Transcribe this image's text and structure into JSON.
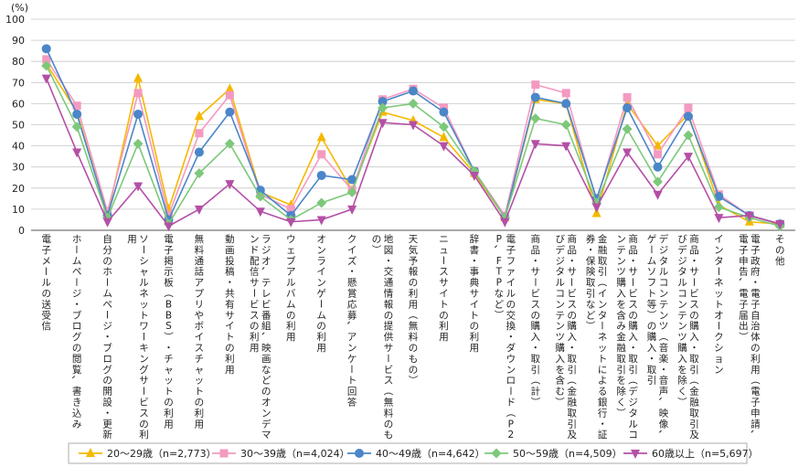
{
  "chart_data": {
    "type": "line",
    "unit_label": "(%)",
    "ylim": [
      0,
      100
    ],
    "yticks": [
      0,
      10,
      20,
      30,
      40,
      50,
      60,
      70,
      80,
      90,
      100
    ],
    "grid": true,
    "legend_position": "bottom",
    "categories": [
      "電子メールの送受信",
      "ホームページ・ブログの閲覧、書き込み",
      "自分のホームページ・ブログの開設・更新",
      "ソーシャルネットワーキングサービスの利用",
      "電子掲示板（BBS）・チャットの利用",
      "無料通話アプリやボイスチャットの利用",
      "動画投稿・共有サイトの利用",
      "ラジオ、テレビ番組、映画などのオンデマンド配信サービスの利用",
      "ウェブアルバムの利用",
      "オンラインゲームの利用",
      "クイズ・懸賞応募、アンケート回答",
      "地図・交通情報の提供サービス（無料のもの）",
      "天気予報の利用（無料のもの）",
      "ニュースサイトの利用",
      "辞書・事典サイトの利用",
      "電子ファイルの交換・ダウンロード（P2P、FTPなど）",
      "商品・サービスの購入・取引（計）",
      "商品・サービスの購入・取引（金融取引及びデジタルコンテンツ購入を含む）",
      "金融取引（インターネットによる銀行・証券・保険取引など）",
      "商品・サービスの購入・取引（デジタルコンテンツ購入を含み金融取引を除く）",
      "デジタルコンテンツ（音楽・音声、映像、ゲームソフト等）の購入・取引",
      "商品・サービスの購入・取引（金融取引及びデジタルコンテンツ購入を除く）",
      "インターネットオークション",
      "電子政府・電子自治体の利用（電子申請、電子申告、電子届出）",
      "その他"
    ],
    "series": [
      {
        "name": "20～29歳（n=2,773）",
        "color": "#f5b800",
        "marker": "triangle",
        "values": [
          79,
          56,
          7,
          72,
          10,
          54,
          67,
          18,
          12,
          44,
          19,
          56,
          52,
          44,
          27,
          6,
          62,
          60,
          8,
          60,
          40,
          55,
          12,
          4,
          3
        ]
      },
      {
        "name": "30～39歳（n=4,024）",
        "color": "#f49ac1",
        "marker": "square",
        "values": [
          81,
          59,
          9,
          65,
          7,
          46,
          64,
          17,
          10,
          36,
          19,
          62,
          67,
          58,
          28,
          7,
          69,
          65,
          14,
          63,
          36,
          58,
          17,
          7,
          3
        ]
      },
      {
        "name": "40～49歳（n=4,642）",
        "color": "#4a86c8",
        "marker": "circle",
        "values": [
          86,
          55,
          7,
          55,
          5,
          37,
          56,
          19,
          7,
          26,
          24,
          61,
          66,
          56,
          28,
          6,
          63,
          60,
          15,
          58,
          30,
          54,
          16,
          7,
          3
        ]
      },
      {
        "name": "50～59歳（n=4,509）",
        "color": "#7dc87a",
        "marker": "diamond",
        "values": [
          78,
          49,
          6,
          41,
          3,
          27,
          41,
          16,
          5,
          13,
          18,
          58,
          60,
          49,
          28,
          6,
          53,
          50,
          13,
          48,
          23,
          45,
          11,
          6,
          2
        ]
      },
      {
        "name": "60歳以上（n=5,697）",
        "color": "#b44fa6",
        "marker": "triangle-down",
        "values": [
          72,
          37,
          4,
          21,
          2,
          10,
          22,
          9,
          4,
          5,
          10,
          51,
          50,
          40,
          26,
          4,
          41,
          40,
          11,
          37,
          17,
          35,
          6,
          7,
          3
        ]
      }
    ]
  }
}
